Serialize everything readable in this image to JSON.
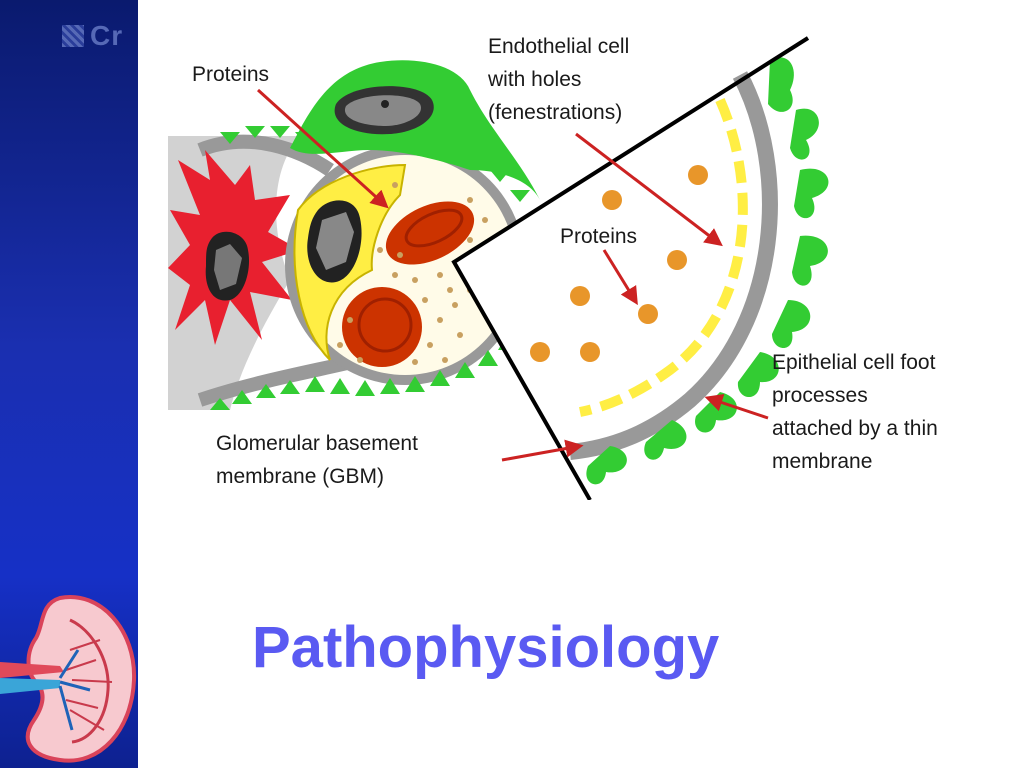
{
  "slide": {
    "logo_text": "Cr",
    "title": "Pathophysiology"
  },
  "labels": {
    "proteins_top": "Proteins",
    "endothelial": [
      "Endothelial cell",
      "with holes",
      "(fenestrations)"
    ],
    "proteins_mid": "Proteins",
    "epithelial": [
      "Epithelial cell foot",
      "processes",
      "attached by a thin",
      "membrane"
    ],
    "gbm": [
      "Glomerular basement",
      "membrane (GBM)"
    ]
  },
  "colors": {
    "sidebar": "#1630c6",
    "title": "#5a5af2",
    "green": "#33cc33",
    "red_cell": "#e8202f",
    "rbc": "#cc3300",
    "protein": "#e8962a",
    "yellow": "#ffee44",
    "gbm_gray": "#999999",
    "arrow": "#cc2222"
  },
  "icons": {
    "logo": "logo-icon",
    "kidney": "kidney-icon"
  }
}
